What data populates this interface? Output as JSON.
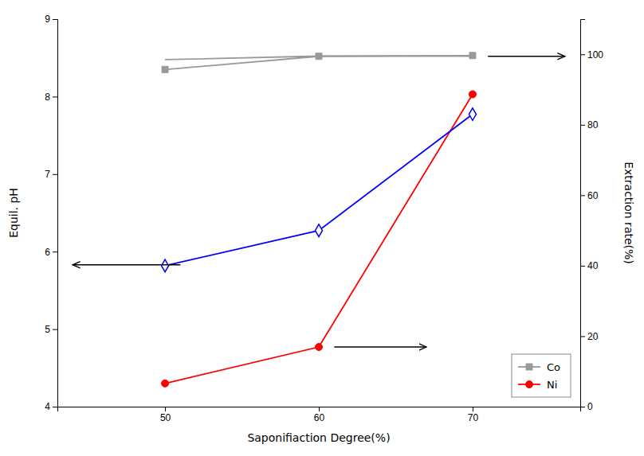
{
  "chart_data": {
    "type": "line",
    "x": [
      50,
      60,
      70
    ],
    "xlim": [
      43,
      77
    ],
    "xticks": [
      50,
      60,
      70
    ],
    "ylim": [
      4,
      9
    ],
    "yticks": [
      4,
      5,
      6,
      7,
      8,
      9
    ],
    "y2lim": [
      0,
      110
    ],
    "y2ticks": [
      0,
      20,
      40,
      60,
      80,
      100
    ],
    "xlabel": "Saponifiaction Degree(%)",
    "ylabel": "Equil. pH",
    "y2label": "Extraction rate(%)",
    "legend": "lower right",
    "grid": false,
    "series": [
      {
        "name": "Co",
        "color": "#999999",
        "marker": "square",
        "values": [
          8.35,
          8.52,
          8.53
        ]
      },
      {
        "name": "Ni",
        "color": "red",
        "marker": "circle",
        "values": [
          4.3,
          4.77,
          8.03
        ]
      },
      {
        "color": "blue",
        "marker": "diamond",
        "axis": "y2",
        "values": [
          40,
          50,
          83
        ]
      },
      {
        "color": "#999999",
        "marker": "none",
        "axis": "y2",
        "values": [
          98.5,
          99.5,
          99.5
        ]
      }
    ],
    "annotations": [
      {
        "type": "arrow",
        "x": [
          51,
          44
        ],
        "y": 5.83
      },
      {
        "type": "arrow",
        "x": [
          61,
          67
        ],
        "y": 4.77
      },
      {
        "type": "arrow",
        "x": [
          71,
          76
        ],
        "y": 8.52
      }
    ]
  }
}
